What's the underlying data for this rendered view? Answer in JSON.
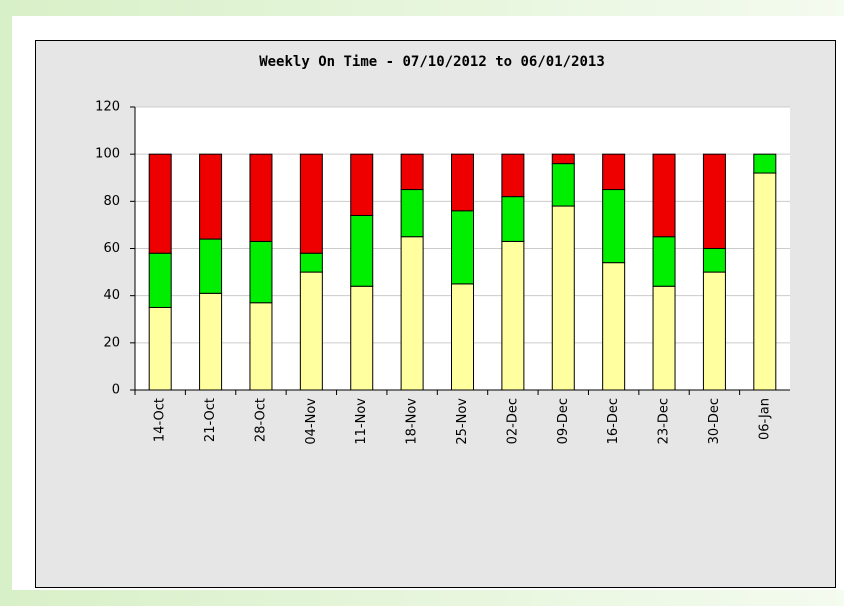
{
  "chart_data": {
    "type": "stacked_bar",
    "title": "Weekly On Time - 07/10/2012 to 06/01/2013",
    "categories": [
      "14-Oct",
      "21-Oct",
      "28-Oct",
      "04-Nov",
      "11-Nov",
      "18-Nov",
      "25-Nov",
      "02-Dec",
      "09-Dec",
      "16-Dec",
      "23-Dec",
      "30-Dec",
      "06-Jan"
    ],
    "series": [
      {
        "color": "#ffffa0",
        "values": [
          35,
          41,
          37,
          50,
          44,
          65,
          45,
          63,
          78,
          54,
          44,
          50,
          92
        ]
      },
      {
        "color": "#00ee00",
        "values": [
          23,
          23,
          26,
          8,
          30,
          20,
          31,
          19,
          18,
          31,
          21,
          10,
          8
        ]
      },
      {
        "color": "#ee0000",
        "values": [
          42,
          36,
          37,
          42,
          26,
          15,
          24,
          18,
          4,
          15,
          35,
          40,
          0
        ]
      }
    ],
    "ylim": [
      0,
      120
    ],
    "yticks": [
      0,
      20,
      40,
      60,
      80,
      100,
      120
    ],
    "grid": true
  }
}
